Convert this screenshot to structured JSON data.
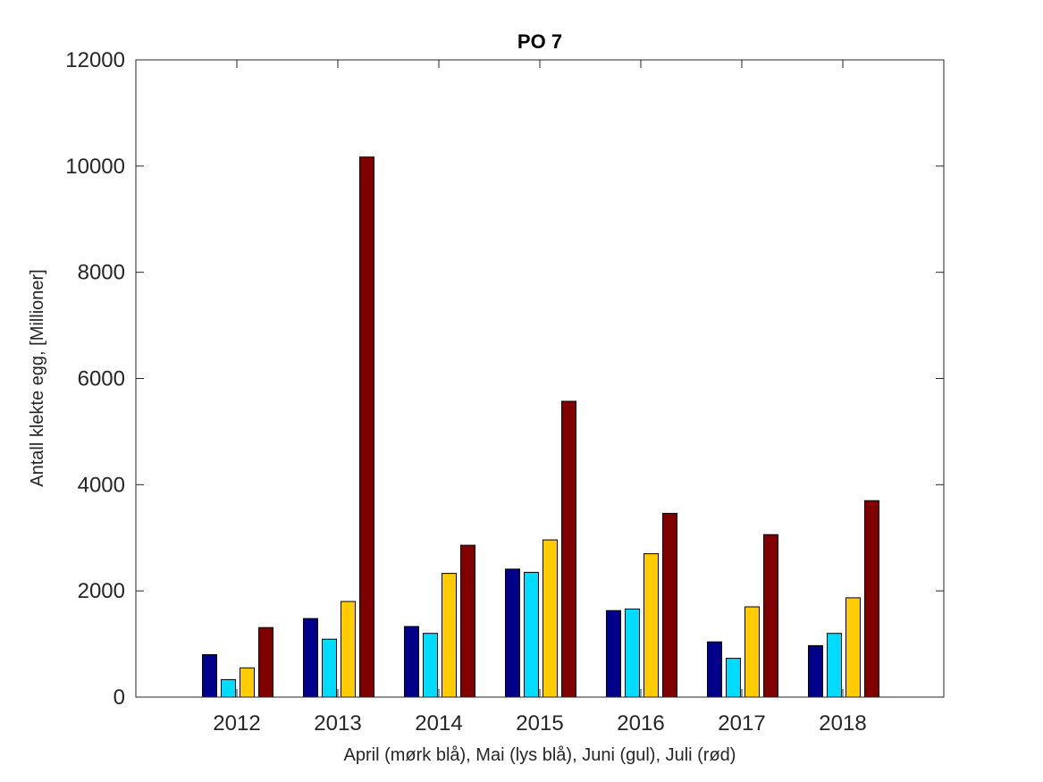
{
  "chart_data": {
    "type": "bar",
    "title": "PO 7",
    "xlabel": "April (mørk blå), Mai (lys blå), Juni (gul), Juli (rød)",
    "ylabel": "Antall klekte egg, [Millioner]",
    "ylim": [
      0,
      12000
    ],
    "yticks": [
      "0",
      "2000",
      "4000",
      "6000",
      "8000",
      "10000",
      "12000"
    ],
    "categories": [
      "2012",
      "2013",
      "2014",
      "2015",
      "2016",
      "2017",
      "2018"
    ],
    "grid": false,
    "series": [
      {
        "values": [
          800,
          1480,
          1330,
          2410,
          1630,
          1040,
          970
        ],
        "color": "#00008b"
      },
      {
        "values": [
          330,
          1090,
          1200,
          2350,
          1660,
          730,
          1200
        ],
        "color": "#00dcff"
      },
      {
        "values": [
          550,
          1800,
          2330,
          2960,
          2700,
          1700,
          1870
        ],
        "color": "#ffcc00"
      },
      {
        "values": [
          1310,
          10170,
          2860,
          5570,
          3460,
          3060,
          3700
        ],
        "color": "#800000"
      }
    ]
  }
}
